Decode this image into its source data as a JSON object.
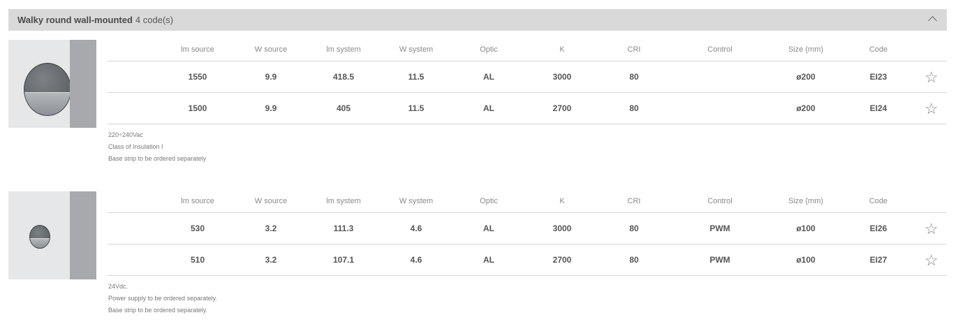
{
  "header": {
    "title": "Walky round wall-mounted",
    "count": "4 code(s)",
    "collapse_icon": "chevron-up-icon"
  },
  "columns": [
    "lm source",
    "W source",
    "lm system",
    "W system",
    "Optic",
    "K",
    "CRI",
    "Control",
    "Size (mm)",
    "Code"
  ],
  "groups": [
    {
      "image": "walky-round-200-photo",
      "rows": [
        [
          "1550",
          "9.9",
          "418.5",
          "11.5",
          "AL",
          "3000",
          "80",
          "",
          "ø200",
          "EI23"
        ],
        [
          "1500",
          "9.9",
          "405",
          "11.5",
          "AL",
          "2700",
          "80",
          "",
          "ø200",
          "EI24"
        ]
      ],
      "notes": [
        "220÷240Vac",
        "Class of Insulation I",
        "Base strip to be ordered separately"
      ]
    },
    {
      "image": "walky-round-100-photo",
      "rows": [
        [
          "530",
          "3.2",
          "111.3",
          "4.6",
          "AL",
          "3000",
          "80",
          "PWM",
          "ø100",
          "EI26"
        ],
        [
          "510",
          "3.2",
          "107.1",
          "4.6",
          "AL",
          "2700",
          "80",
          "PWM",
          "ø100",
          "EI27"
        ]
      ],
      "notes": [
        "24Vdc.",
        "Power supply to be ordered separately.",
        "Base strip to be ordered separately."
      ]
    }
  ],
  "favorite_icon": "☆",
  "colors": {
    "header_bg": "#d9d9d9",
    "image_bg": "#e6e7e8",
    "image_strip": "#a7a9ac"
  }
}
